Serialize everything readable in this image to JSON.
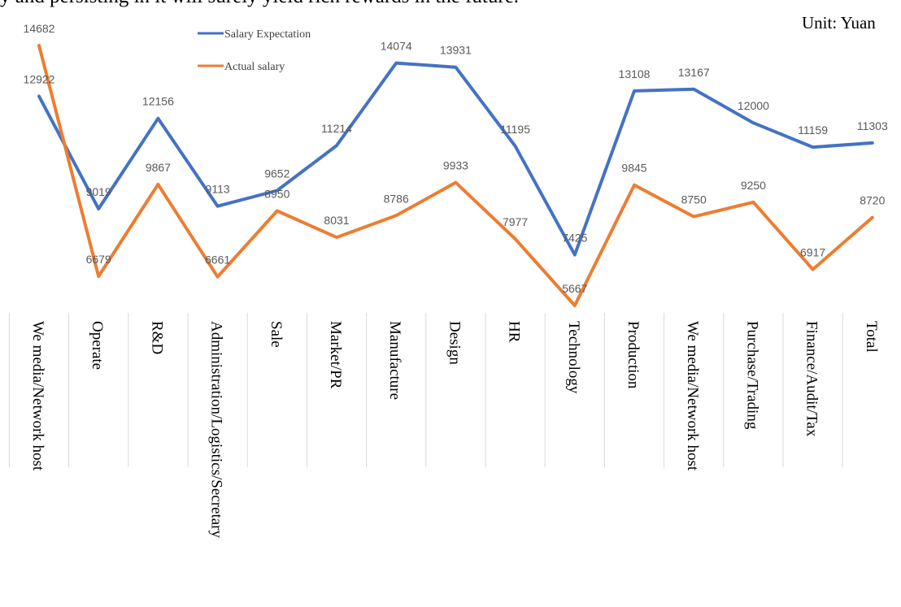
{
  "page_text": {
    "top_line": "y and persisting in it will surely yield rich rewards in the future."
  },
  "chart_data": {
    "type": "line",
    "unit_label": "Unit: Yuan",
    "categories": [
      "We media/Network host",
      "Operate",
      "R&D",
      "Administration/Logistics/Secretary",
      "Sale",
      "Market/PR",
      "Manufacture",
      "Design",
      "HR",
      "Technology",
      "Production",
      "We media/Network host",
      "Purchase/Trading",
      "Finance/Audit/Tax",
      "Total"
    ],
    "series": [
      {
        "name": "Salary Expectation",
        "color": "#4472c4",
        "values": [
          12922,
          9019,
          12156,
          9113,
          9652,
          11214,
          14074,
          13931,
          11195,
          7425,
          13108,
          13167,
          12000,
          11159,
          11303
        ]
      },
      {
        "name": "Actual salary",
        "color": "#ed7d31",
        "values": [
          14682,
          6679,
          9867,
          6661,
          8950,
          8031,
          8786,
          9933,
          7977,
          5667,
          9845,
          8750,
          9250,
          6917,
          8720
        ]
      }
    ],
    "legend_position": "top-left",
    "grid": false
  }
}
